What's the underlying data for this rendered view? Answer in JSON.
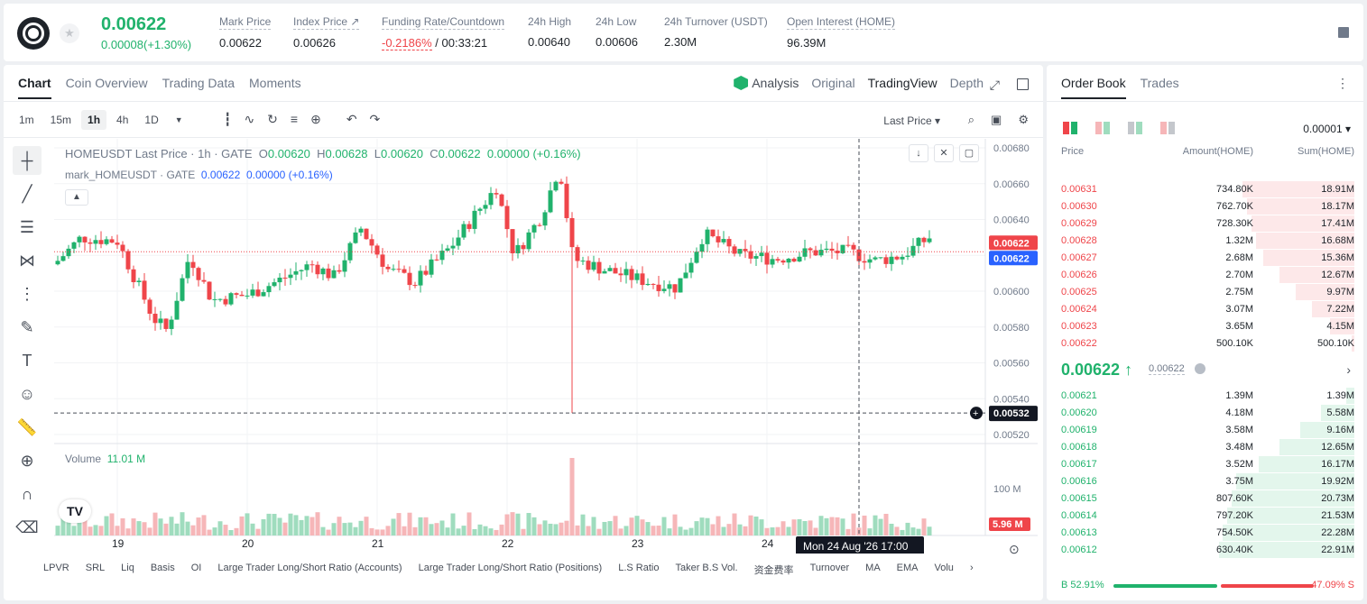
{
  "header": {
    "last_price": "0.00622",
    "change": "0.00008(+1.30%)",
    "stats": [
      {
        "label": "Mark Price",
        "value": "0.00622"
      },
      {
        "label": "Index Price ↗",
        "value": "0.00626"
      },
      {
        "label": "Funding Rate/Countdown",
        "value": "-0.2186%",
        "value2": "/ 00:33:21"
      },
      {
        "label": "24h High",
        "value": "0.00640"
      },
      {
        "label": "24h Low",
        "value": "0.00606"
      },
      {
        "label": "24h Turnover (USDT)",
        "value": "2.30M"
      },
      {
        "label": "Open Interest (HOME)",
        "value": "96.39M"
      }
    ]
  },
  "chart_tabs": [
    "Chart",
    "Coin Overview",
    "Trading Data",
    "Moments"
  ],
  "view_tabs": {
    "analysis": "Analysis",
    "original": "Original",
    "tradingview": "TradingView",
    "depth": "Depth"
  },
  "intervals": [
    "1m",
    "15m",
    "1h",
    "4h",
    "1D"
  ],
  "price_type": "Last Price",
  "legend": {
    "symbol": "HOMEUSDT Last Price · 1h · GATE",
    "o_label": "O",
    "o": "0.00620",
    "h_label": "H",
    "h": "0.00628",
    "l_label": "L",
    "l": "0.00620",
    "c_label": "C",
    "c": "0.00622",
    "chg": "0.00000 (+0.16%)",
    "mark_symbol": "mark_HOMEUSDT · GATE",
    "mark_price": "0.00622",
    "mark_chg": "0.00000 (+0.16%)"
  },
  "volume_legend": {
    "label": "Volume",
    "value": "11.01 M"
  },
  "y_ticks": [
    "0.00680",
    "0.00660",
    "0.00640",
    "0.00620",
    "0.00600",
    "0.00580",
    "0.00560",
    "0.00540",
    "0.00520"
  ],
  "y_tick_values": [
    0.0068,
    0.0066,
    0.0064,
    0.0062,
    0.006,
    0.0058,
    0.0056,
    0.0054,
    0.0052
  ],
  "price_labels": {
    "last": "0.00622",
    "mark": "0.00622",
    "cursor": "0.00532"
  },
  "volume_labels": {
    "tick": "100 M",
    "current": "5.96 M"
  },
  "x_ticks": [
    "19",
    "20",
    "21",
    "22",
    "23",
    "24"
  ],
  "crosshair_time": "Mon 24 Aug '26   17:00",
  "bottom_indicators": [
    "LPVR",
    "SRL",
    "Liq",
    "Basis",
    "OI",
    "Large Trader Long/Short Ratio (Accounts)",
    "Large Trader Long/Short Ratio (Positions)",
    "L.S Ratio",
    "Taker B.S Vol.",
    "资金费率",
    "Turnover",
    "MA",
    "EMA",
    "Volu"
  ],
  "chart_data": {
    "type": "candlestick",
    "x_range": [
      "19",
      "24"
    ],
    "ylim": [
      0.0052,
      0.0068
    ],
    "volume_tick": 100,
    "volume_unit": "M"
  },
  "orderbook": {
    "tabs": [
      "Order Book",
      "Trades"
    ],
    "precision": "0.00001",
    "headers": {
      "price": "Price",
      "amount": "Amount(HOME)",
      "sum": "Sum(HOME)"
    },
    "asks": [
      {
        "price": "0.00631",
        "amount": "734.80K",
        "sum": "18.91M",
        "depth": 0.827
      },
      {
        "price": "0.00630",
        "amount": "762.70K",
        "sum": "18.17M",
        "depth": 0.795
      },
      {
        "price": "0.00629",
        "amount": "728.30K",
        "sum": "17.41M",
        "depth": 0.762
      },
      {
        "price": "0.00628",
        "amount": "1.32M",
        "sum": "16.68M",
        "depth": 0.73
      },
      {
        "price": "0.00627",
        "amount": "2.68M",
        "sum": "15.36M",
        "depth": 0.672
      },
      {
        "price": "0.00626",
        "amount": "2.70M",
        "sum": "12.67M",
        "depth": 0.554
      },
      {
        "price": "0.00625",
        "amount": "2.75M",
        "sum": "9.97M",
        "depth": 0.436
      },
      {
        "price": "0.00624",
        "amount": "3.07M",
        "sum": "7.22M",
        "depth": 0.316
      },
      {
        "price": "0.00623",
        "amount": "3.65M",
        "sum": "4.15M",
        "depth": 0.182
      },
      {
        "price": "0.00622",
        "amount": "500.10K",
        "sum": "500.10K",
        "depth": 0.022
      }
    ],
    "mid_price": "0.00622 ↑",
    "mid_mark": "0.00622",
    "bids": [
      {
        "price": "0.00621",
        "amount": "1.39M",
        "sum": "1.39M",
        "depth": 0.061
      },
      {
        "price": "0.00620",
        "amount": "4.18M",
        "sum": "5.58M",
        "depth": 0.244
      },
      {
        "price": "0.00619",
        "amount": "3.58M",
        "sum": "9.16M",
        "depth": 0.4
      },
      {
        "price": "0.00618",
        "amount": "3.48M",
        "sum": "12.65M",
        "depth": 0.553
      },
      {
        "price": "0.00617",
        "amount": "3.52M",
        "sum": "16.17M",
        "depth": 0.707
      },
      {
        "price": "0.00616",
        "amount": "3.75M",
        "sum": "19.92M",
        "depth": 0.871
      },
      {
        "price": "0.00615",
        "amount": "807.60K",
        "sum": "20.73M",
        "depth": 0.907
      },
      {
        "price": "0.00614",
        "amount": "797.20K",
        "sum": "21.53M",
        "depth": 0.942
      },
      {
        "price": "0.00613",
        "amount": "754.50K",
        "sum": "22.28M",
        "depth": 0.974
      },
      {
        "price": "0.00612",
        "amount": "630.40K",
        "sum": "22.91M",
        "depth": 1.0
      }
    ],
    "buy_ratio": "B 52.91%",
    "sell_ratio": "47.09% S",
    "buy_fraction": 0.5291
  },
  "colors": {
    "up": "#20b26c",
    "down": "#ef454a",
    "accent": "#1e2329"
  }
}
